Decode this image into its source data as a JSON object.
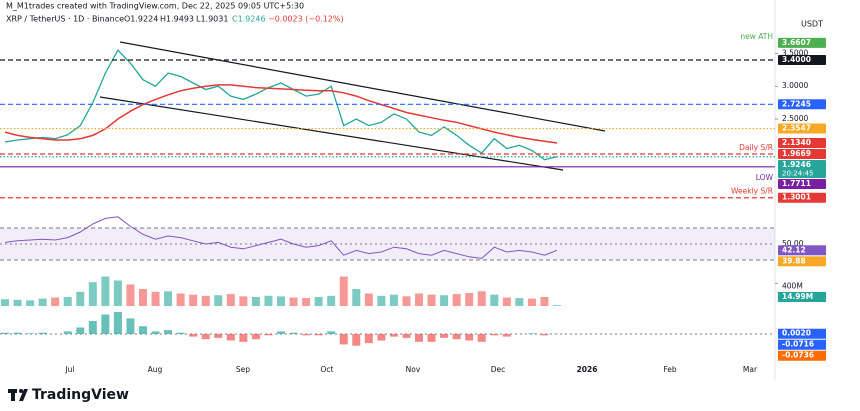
{
  "header": {
    "credit": "M_M1trades created with TradingView.com, Dec 22, 2025 09:05 UTC+5:30",
    "symbol": "XRP / TetherUS · 1D · Binance",
    "open": "O1.9224",
    "high": "H1.9493",
    "low": "L1.9031",
    "close": "C1.9246",
    "change": "−0.0023 (−0.12%)",
    "currency": "USDT"
  },
  "chart_data": {
    "type": "line",
    "ylim": [
      0.93,
      4.01
    ],
    "yticks": [
      {
        "value": 3.5,
        "label": "3.5000"
      },
      {
        "value": 3,
        "label": "3.0000"
      },
      {
        "value": 2.5,
        "label": "2.5000"
      }
    ],
    "x_labels": [
      "Jul",
      "Aug",
      "Sep",
      "Oct",
      "Nov",
      "Dec",
      "2026",
      "Feb",
      "Mar"
    ],
    "series": [
      {
        "color": "#26a69a",
        "values": [
          2.15,
          2.18,
          2.2,
          2.22,
          2.2,
          2.26,
          2.4,
          2.75,
          3.2,
          3.55,
          3.35,
          3.1,
          3.0,
          3.2,
          3.15,
          3.05,
          2.95,
          3.0,
          2.85,
          2.8,
          2.88,
          2.98,
          3.05,
          2.95,
          2.85,
          2.88,
          3.0,
          2.4,
          2.5,
          2.4,
          2.45,
          2.58,
          2.5,
          2.3,
          2.25,
          2.38,
          2.25,
          2.1,
          1.98,
          2.2,
          2.05,
          2.1,
          2.02,
          1.88,
          1.9246
        ]
      },
      {
        "color": "#e53935",
        "values": [
          2.3,
          2.25,
          2.22,
          2.2,
          2.18,
          2.18,
          2.2,
          2.25,
          2.35,
          2.5,
          2.62,
          2.72,
          2.8,
          2.87,
          2.93,
          2.97,
          3.0,
          3.02,
          3.02,
          3.0,
          2.98,
          2.97,
          2.96,
          2.95,
          2.94,
          2.93,
          2.93,
          2.9,
          2.85,
          2.78,
          2.72,
          2.66,
          2.6,
          2.56,
          2.52,
          2.48,
          2.45,
          2.4,
          2.35,
          2.3,
          2.26,
          2.22,
          2.19,
          2.16,
          2.134
        ]
      }
    ],
    "levels": [
      {
        "value": 3.6607,
        "label": "3.6607",
        "color": "#4caf50",
        "line": "none",
        "note": "new ATH"
      },
      {
        "value": 3.4,
        "label": "3.4000",
        "color": "#131722",
        "line": "dashed"
      },
      {
        "value": 2.7245,
        "label": "2.7245",
        "color": "#2962ff",
        "line": "dashed"
      },
      {
        "value": 2.3547,
        "label": "2.3547",
        "color": "#f9a825",
        "line": "dotted"
      },
      {
        "value": 2.134,
        "label": "2.1340",
        "color": "#e53935",
        "line": "none"
      },
      {
        "value": 1.9669,
        "label": "1.9669",
        "color": "#e53935",
        "line": "dashed",
        "note": "Daily S/R"
      },
      {
        "value": 1.9246,
        "label": "1.9246",
        "color": "#26a69a",
        "line": "dotted",
        "countdown": "20:24:45"
      },
      {
        "value": 1.7711,
        "label": "1.7711",
        "color": "#7b1fa2",
        "line": "solid",
        "note": "LOW"
      },
      {
        "value": 1.3001,
        "label": "1.3001",
        "color": "#e53935",
        "line": "dashed",
        "note": "Weekly S/R"
      }
    ]
  },
  "rsi": {
    "ylim": [
      15,
      90
    ],
    "band": [
      70,
      30
    ],
    "color": "#7e57c2",
    "ticks": [
      {
        "value": 50,
        "label": "50.00"
      }
    ],
    "values": [
      52,
      54,
      55,
      56,
      55,
      58,
      65,
      75,
      82,
      84,
      72,
      62,
      56,
      60,
      58,
      54,
      50,
      52,
      46,
      44,
      48,
      52,
      56,
      50,
      46,
      48,
      54,
      36,
      42,
      38,
      40,
      46,
      44,
      38,
      36,
      42,
      38,
      34,
      32,
      46,
      40,
      42,
      40,
      36,
      42.12
    ],
    "labels": [
      {
        "value": 42.12,
        "label": "42.12",
        "color": "#7e57c2"
      },
      {
        "value": 39.88,
        "label": "39.88",
        "color": "#f9a825"
      }
    ]
  },
  "volume": {
    "ylim": [
      0,
      600
    ],
    "ticks": [
      {
        "value": 400,
        "label": "400M"
      }
    ],
    "values": [
      120,
      110,
      100,
      130,
      150,
      160,
      250,
      420,
      520,
      450,
      380,
      300,
      250,
      260,
      220,
      200,
      180,
      190,
      210,
      170,
      160,
      180,
      170,
      150,
      140,
      160,
      180,
      520,
      300,
      220,
      180,
      200,
      170,
      220,
      200,
      190,
      210,
      230,
      260,
      200,
      150,
      140,
      130,
      160,
      14.99
    ],
    "labels": [
      {
        "value": 14.99,
        "label": "14.99M",
        "color": "#26a69a"
      }
    ]
  },
  "macd": {
    "ylim": [
      -0.2,
      0.2
    ],
    "values": [
      0.01,
      0.01,
      0.005,
      0.01,
      0.0,
      0.02,
      0.05,
      0.1,
      0.15,
      0.17,
      0.12,
      0.06,
      0.02,
      0.03,
      0.01,
      -0.02,
      -0.04,
      -0.03,
      -0.05,
      -0.06,
      -0.04,
      -0.01,
      0.02,
      0.01,
      -0.01,
      -0.01,
      0.02,
      -0.08,
      -0.09,
      -0.07,
      -0.05,
      -0.02,
      -0.03,
      -0.06,
      -0.06,
      -0.03,
      -0.04,
      -0.05,
      -0.06,
      -0.01,
      -0.02,
      0.0,
      0.005,
      -0.01,
      0.002
    ],
    "labels": [
      {
        "value": 0.002,
        "label": "0.0020",
        "color": "#2962ff"
      },
      {
        "value": -0.0716,
        "label": "-0.0716",
        "color": "#2962ff"
      },
      {
        "value": -0.0736,
        "label": "-0.0736",
        "color": "#ff6d00"
      }
    ]
  },
  "brand": "TradingView"
}
